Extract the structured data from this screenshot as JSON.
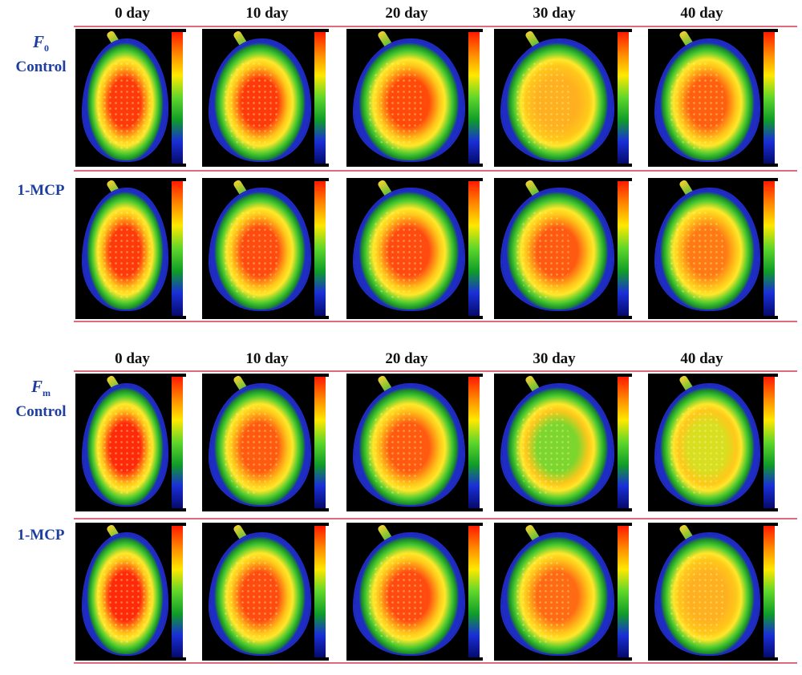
{
  "days": [
    "0 day",
    "10 day",
    "20 day",
    "30 day",
    "40 day"
  ],
  "top_section": {
    "symbol": "F",
    "subscript": "0",
    "rows": [
      "Control",
      "1-MCP"
    ]
  },
  "bottom_section": {
    "symbol": "F",
    "subscript": "m",
    "rows": [
      "Control",
      "1-MCP"
    ]
  },
  "colormap": [
    "#ff1a00",
    "#ff8a00",
    "#ffe800",
    "#5fd62a",
    "#0f9c28",
    "#1a2fd8",
    "#050a6a"
  ]
}
